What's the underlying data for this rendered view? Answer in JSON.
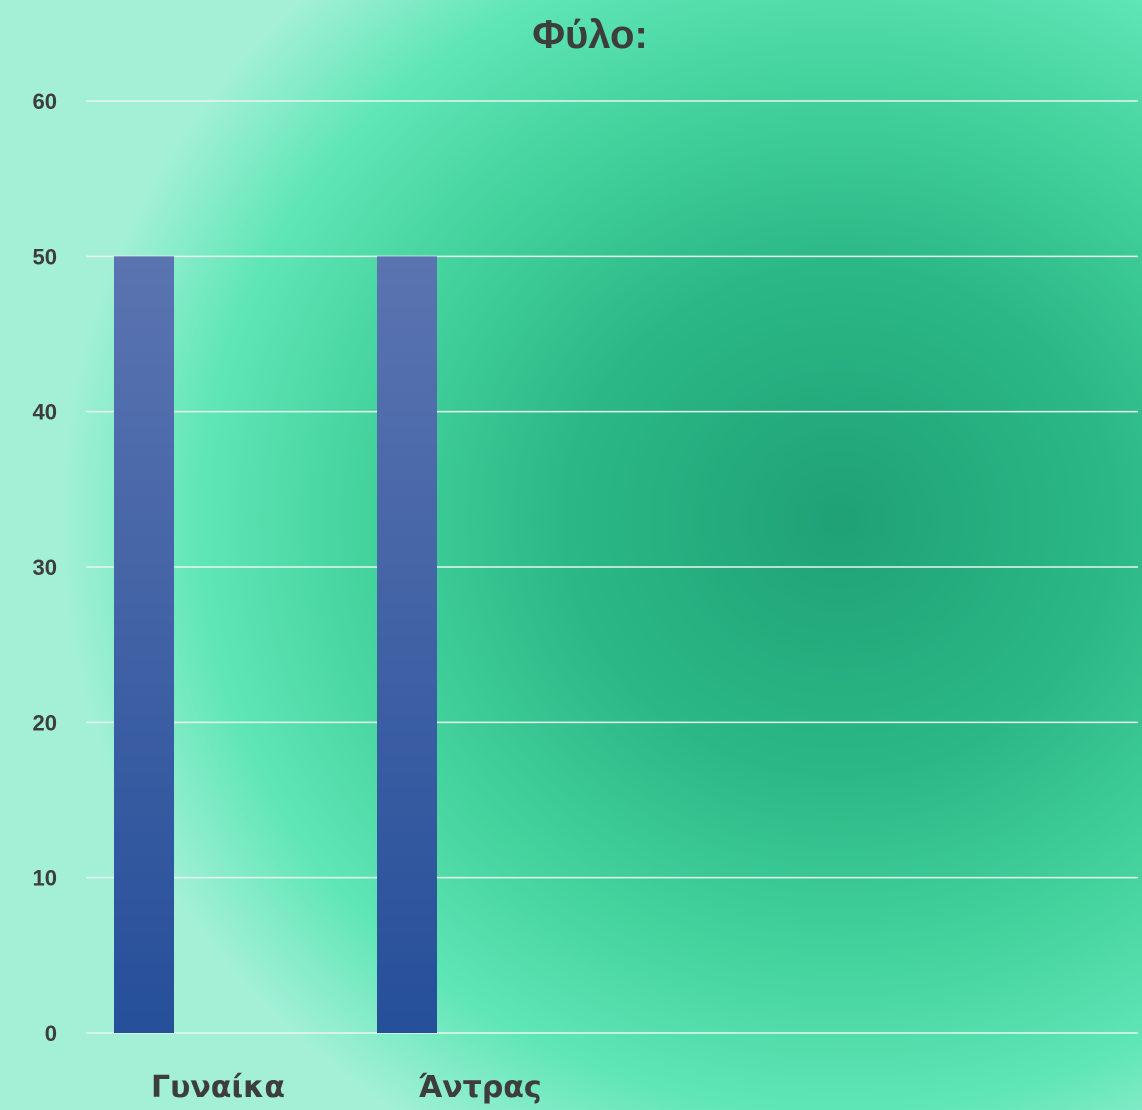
{
  "chart_data": {
    "type": "bar",
    "title": "Φύλο:",
    "categories": [
      "Γυναίκα",
      "Άντρας"
    ],
    "series": [
      {
        "values": [
          50,
          50
        ]
      }
    ],
    "xlabel": "",
    "ylabel": "",
    "ylim": [
      0,
      60
    ],
    "yticks": [
      0,
      10,
      20,
      30,
      40,
      50,
      60
    ],
    "grid": true,
    "legend": "none",
    "colors": {
      "bar_top": "#5a74b0",
      "bar_bottom": "#264f9a",
      "background_center": "#1fa176",
      "background_edge": "#a3f0d7",
      "text": "#3d3d3d",
      "grid": "#e8f5ee"
    }
  }
}
